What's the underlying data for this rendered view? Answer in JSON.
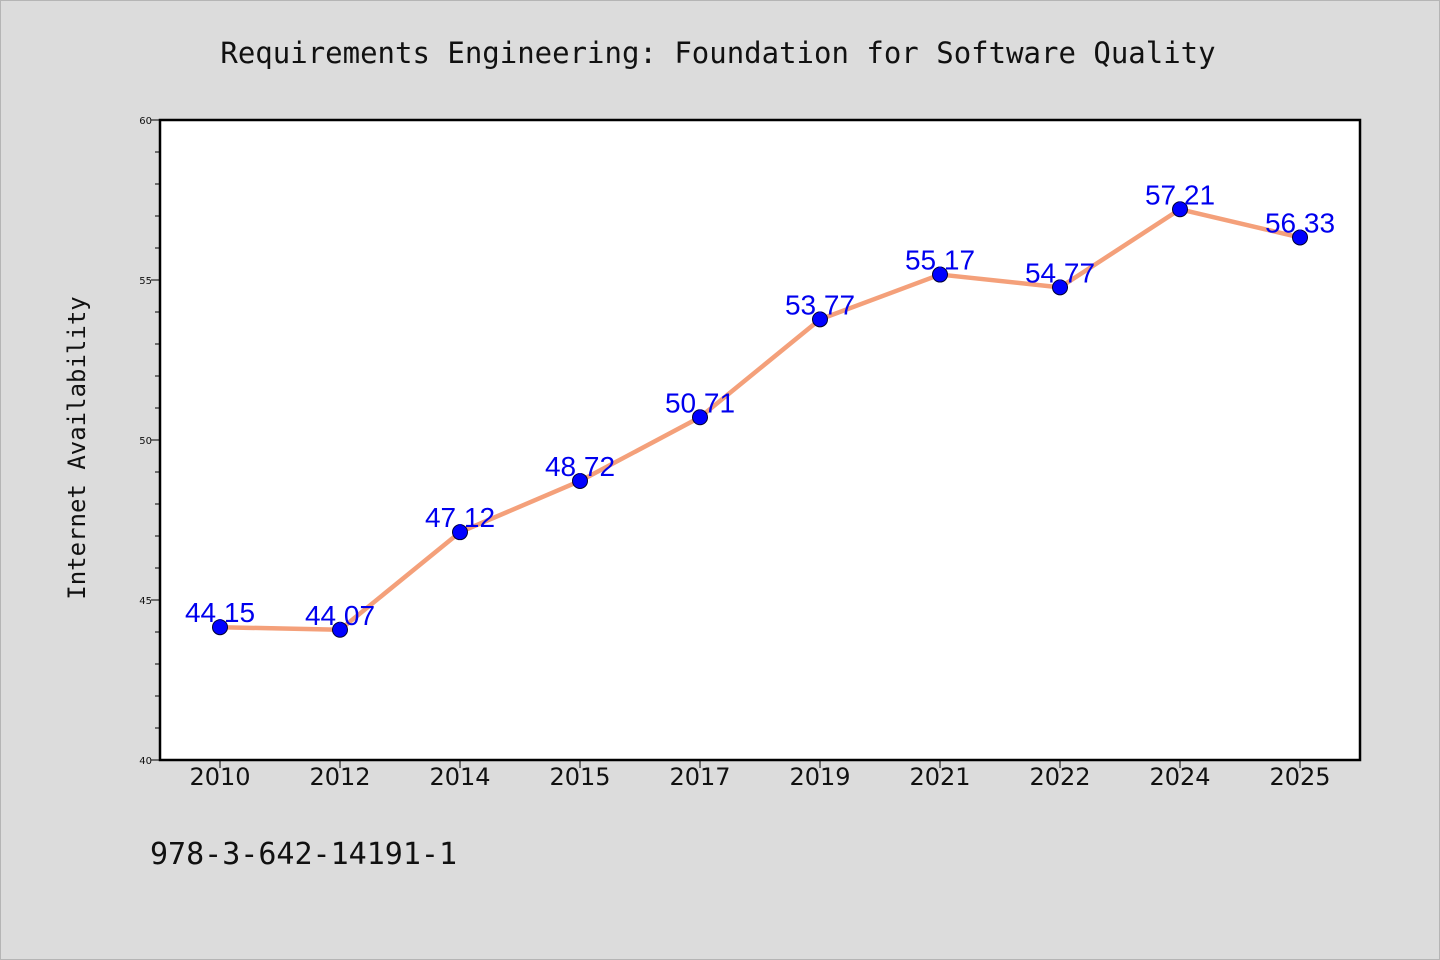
{
  "page": {
    "background": "#dcdcdc",
    "footer_text": "978-3-642-14191-1"
  },
  "chart_data": {
    "type": "line",
    "title": "Requirements Engineering: Foundation for Software Quality",
    "xlabel": "",
    "ylabel": "Internet Availability",
    "categories": [
      "2010",
      "2012",
      "2014",
      "2015",
      "2017",
      "2019",
      "2021",
      "2022",
      "2024",
      "2025"
    ],
    "series": [
      {
        "values": [
          44.15,
          44.07,
          47.12,
          48.72,
          50.71,
          53.77,
          55.17,
          54.77,
          57.21,
          56.33
        ],
        "data_labels": [
          "44.15",
          "44.07",
          "47.12",
          "48.72",
          "50.71",
          "53.77",
          "55.17",
          "54.77",
          "57.21",
          "56.33"
        ],
        "line_color": "#f4a07a",
        "marker_color": "#0000ff"
      }
    ],
    "ylim": [
      40,
      60
    ],
    "yticks": [
      40,
      45,
      50,
      55,
      60
    ],
    "ytick_labels": [
      "40",
      "45",
      "50",
      "55",
      "60"
    ],
    "grid": false,
    "legend": "none",
    "label_color": "#0000ee"
  }
}
